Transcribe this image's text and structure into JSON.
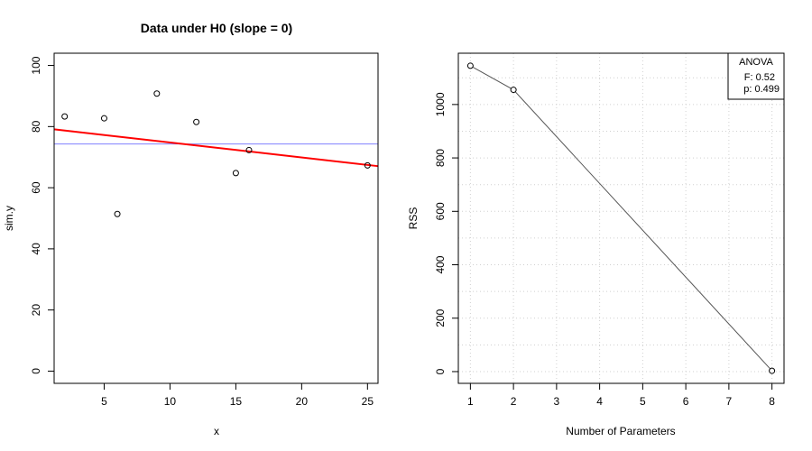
{
  "chart_data": [
    {
      "type": "scatter",
      "title": "Data under H0 (slope = 0)",
      "xlabel": "x",
      "ylabel": "sim.y",
      "xlim": [
        1.2,
        25.8
      ],
      "ylim": [
        -4,
        104
      ],
      "xticks": [
        5,
        10,
        15,
        20,
        25
      ],
      "yticks": [
        0,
        20,
        40,
        60,
        80,
        100
      ],
      "grid": false,
      "points": [
        {
          "x": 2,
          "y": 83.3
        },
        {
          "x": 5,
          "y": 82.7
        },
        {
          "x": 6,
          "y": 51.4
        },
        {
          "x": 9,
          "y": 90.8
        },
        {
          "x": 12,
          "y": 81.5
        },
        {
          "x": 15,
          "y": 64.8
        },
        {
          "x": 16,
          "y": 72.3
        },
        {
          "x": 25,
          "y": 67.3
        }
      ],
      "lines": [
        {
          "kind": "horizontal",
          "y": 74.3,
          "color": "#8080ff"
        },
        {
          "kind": "regression",
          "intercept": 79.7,
          "slope": -0.49,
          "color": "#ff0000"
        }
      ]
    },
    {
      "type": "line",
      "title": "",
      "xlabel": "Number of Parameters",
      "ylabel": "RSS",
      "xlim": [
        0.72,
        8.28
      ],
      "ylim": [
        -44,
        1192
      ],
      "xticks": [
        1,
        2,
        3,
        4,
        5,
        6,
        7,
        8
      ],
      "yticks": [
        0,
        200,
        400,
        600,
        800,
        1000
      ],
      "grid": true,
      "x": [
        1,
        2,
        8
      ],
      "y": [
        1145,
        1055,
        3
      ],
      "color": "#555555",
      "legend": {
        "position": "top-right",
        "title": "ANOVA",
        "lines": [
          "F: 0.52",
          "p: 0.499"
        ]
      }
    }
  ]
}
